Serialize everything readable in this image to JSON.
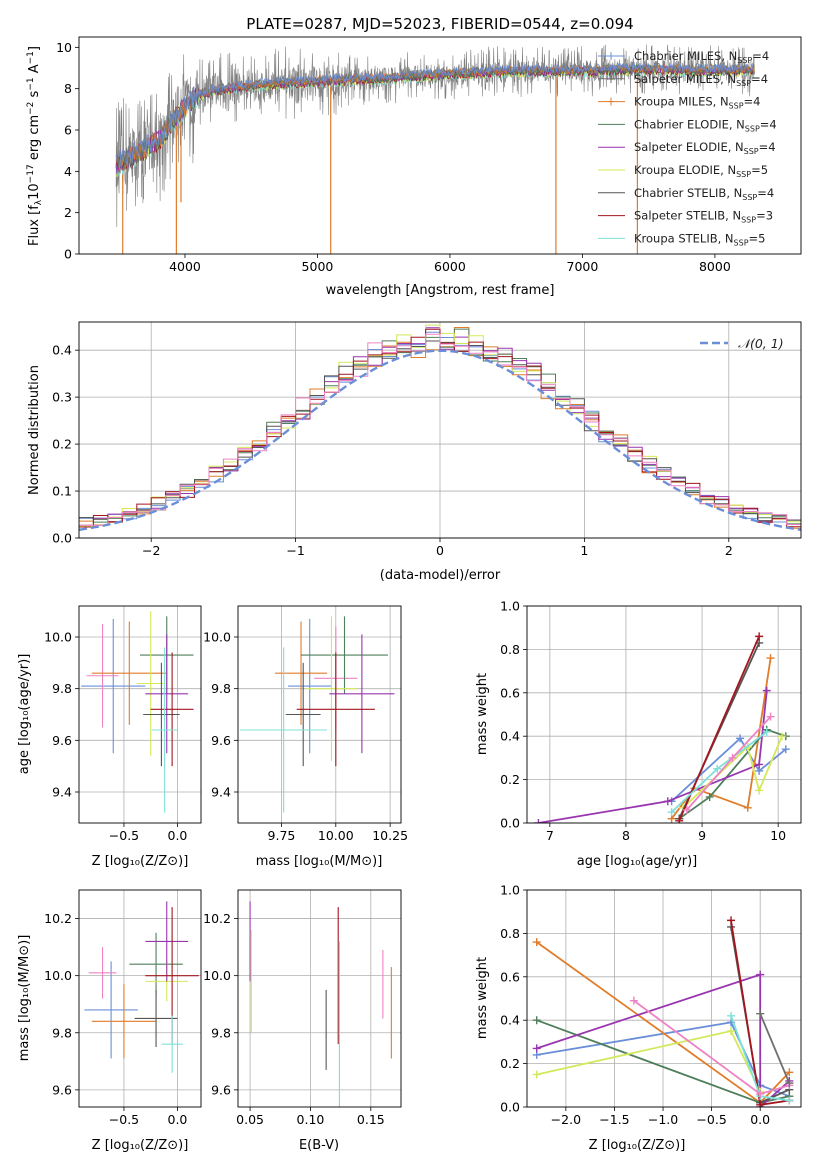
{
  "colors": {
    "chabrier_miles": "#6a8fd8",
    "salpeter_miles": "#6f6f6f",
    "kroupa_miles": "#e07c2a",
    "chabrier_elodie": "#4f7f5a",
    "salpeter_elodie": "#9a35b0",
    "kroupa_elodie": "#d4e85a",
    "chabrier_stelib": "#555555",
    "salpeter_stelib": "#a3161e",
    "kroupa_stelib": "#7fe0d8",
    "extra_pink": "#ee82c3",
    "data_gray": "#808080",
    "grid": "#b0b0b0"
  },
  "chart_data": [
    {
      "id": "spectrum",
      "type": "line",
      "title": "PLATE=0287, MJD=52023, FIBERID=0544, z=0.094",
      "xlabel": "wavelength [Angstrom, rest frame]",
      "ylabel_parts": [
        "Flux [f",
        "λ",
        "10",
        "−17",
        " erg cm",
        "−2",
        " s",
        "−1",
        " A",
        "−1",
        "]"
      ],
      "xlim": [
        3200,
        8650
      ],
      "ylim": [
        0,
        10.5
      ],
      "xticks": [
        4000,
        5000,
        6000,
        7000,
        8000
      ],
      "yticks": [
        0,
        2,
        4,
        6,
        8,
        10
      ],
      "grid": false,
      "legend_position": "right",
      "legend": [
        {
          "label": "Chabrier MILES, N",
          "sub": "SSP",
          "val": "=4",
          "color_key": "chabrier_miles"
        },
        {
          "label": "Salpeter MILES, N",
          "sub": "SSP",
          "val": "=4",
          "color_key": "salpeter_miles"
        },
        {
          "label": "Kroupa MILES, N",
          "sub": "SSP",
          "val": "=4",
          "color_key": "kroupa_miles"
        },
        {
          "label": "Chabrier ELODIE, N",
          "sub": "SSP",
          "val": "=4",
          "color_key": "chabrier_elodie"
        },
        {
          "label": "Salpeter ELODIE, N",
          "sub": "SSP",
          "val": "=4",
          "color_key": "salpeter_elodie"
        },
        {
          "label": "Kroupa ELODIE, N",
          "sub": "SSP",
          "val": "=5",
          "color_key": "kroupa_elodie"
        },
        {
          "label": "Chabrier STELIB, N",
          "sub": "SSP",
          "val": "=4",
          "color_key": "chabrier_stelib"
        },
        {
          "label": "Salpeter STELIB, N",
          "sub": "SSP",
          "val": "=3",
          "color_key": "salpeter_stelib"
        },
        {
          "label": "Kroupa STELIB, N",
          "sub": "SSP",
          "val": "=5",
          "color_key": "kroupa_stelib"
        }
      ],
      "continuum": {
        "x": [
          3480,
          3600,
          3800,
          3950,
          4100,
          4300,
          4600,
          5000,
          5500,
          6000,
          6500,
          7000,
          7500,
          8000,
          8300
        ],
        "y": [
          4.3,
          4.7,
          5.5,
          6.8,
          7.7,
          8.0,
          8.2,
          8.35,
          8.5,
          8.7,
          8.85,
          8.85,
          8.95,
          8.85,
          8.9
        ]
      },
      "dips": [
        {
          "x": 3530,
          "y": 0.0
        },
        {
          "x": 3935,
          "y": 0.0
        },
        {
          "x": 3970,
          "y": 2.5
        },
        {
          "x": 5100,
          "y": 0.0
        },
        {
          "x": 6800,
          "y": 0.0
        },
        {
          "x": 7415,
          "y": 0.0
        }
      ]
    },
    {
      "id": "residuals",
      "type": "line",
      "xlabel": "(data-model)/error",
      "ylabel": "Normed distribution",
      "xlim": [
        -2.5,
        2.5
      ],
      "ylim": [
        0,
        0.46
      ],
      "xticks": [
        -2,
        -1,
        0,
        1,
        2
      ],
      "xtick_labels": [
        "−2",
        "−1",
        "0",
        "1",
        "2"
      ],
      "yticks": [
        0.0,
        0.1,
        0.2,
        0.3,
        0.4
      ],
      "ytick_labels": [
        "0.0",
        "0.1",
        "0.2",
        "0.3",
        "0.4"
      ],
      "grid": true,
      "legend": [
        {
          "label": "𝒩(0, 1)",
          "color_key": "chabrier_miles",
          "style": "dashed"
        }
      ],
      "legend_position": "top-right",
      "bin_width": 0.1,
      "gaussian": {
        "mu": 0,
        "sigma": 1
      }
    },
    {
      "id": "age_vs_Z",
      "type": "scatter",
      "xlabel": "Z [log₁₀(Z/Z⊙)]",
      "ylabel": "age  [log₁₀(age/yr)]",
      "xlim": [
        -0.92,
        0.22
      ],
      "ylim": [
        9.28,
        10.12
      ],
      "xticks": [
        -0.5,
        0.0
      ],
      "xtick_labels": [
        "−0.5",
        "0.0"
      ],
      "yticks": [
        9.4,
        9.6,
        9.8,
        10.0
      ],
      "ytick_labels": [
        "9.4",
        "9.6",
        "9.8",
        "10.0"
      ],
      "grid": true,
      "points": [
        {
          "x": -0.6,
          "xerr": 0.3,
          "y": 9.81,
          "yerr": 0.26,
          "color_key": "chabrier_miles"
        },
        {
          "x": -0.7,
          "xerr": 0.15,
          "y": 9.85,
          "yerr": 0.2,
          "color_key": "extra_pink"
        },
        {
          "x": -0.45,
          "xerr": 0.35,
          "y": 9.86,
          "yerr": 0.2,
          "color_key": "kroupa_miles"
        },
        {
          "x": -0.1,
          "xerr": 0.25,
          "y": 9.93,
          "yerr": 0.15,
          "color_key": "chabrier_elodie"
        },
        {
          "x": -0.25,
          "xerr": 0.13,
          "y": 9.82,
          "yerr": 0.28,
          "color_key": "kroupa_elodie"
        },
        {
          "x": -0.1,
          "xerr": 0.2,
          "y": 9.78,
          "yerr": 0.23,
          "color_key": "salpeter_elodie"
        },
        {
          "x": -0.15,
          "xerr": 0.17,
          "y": 9.7,
          "yerr": 0.2,
          "color_key": "chabrier_stelib"
        },
        {
          "x": -0.05,
          "xerr": 0.2,
          "y": 9.72,
          "yerr": 0.22,
          "color_key": "salpeter_stelib"
        },
        {
          "x": -0.12,
          "xerr": 0.12,
          "y": 9.64,
          "yerr": 0.32,
          "color_key": "kroupa_stelib"
        }
      ]
    },
    {
      "id": "age_vs_mass",
      "type": "scatter",
      "xlabel": "mass [log₁₀(M/M⊙)]",
      "xlim": [
        9.55,
        10.3
      ],
      "ylim": [
        9.28,
        10.12
      ],
      "xticks": [
        9.75,
        10.0,
        10.25
      ],
      "xtick_labels": [
        "9.75",
        "10.00",
        "10.25"
      ],
      "yticks": [
        9.4,
        9.6,
        9.8,
        10.0
      ],
      "ytick_labels": [
        "9.4",
        "9.6",
        "9.8",
        "10.0"
      ],
      "grid": true,
      "points": [
        {
          "x": 9.88,
          "xerr": 0.1,
          "y": 9.81,
          "yerr": 0.26,
          "color_key": "chabrier_miles"
        },
        {
          "x": 10.0,
          "xerr": 0.1,
          "y": 9.84,
          "yerr": 0.2,
          "color_key": "extra_pink"
        },
        {
          "x": 9.84,
          "xerr": 0.12,
          "y": 9.86,
          "yerr": 0.2,
          "color_key": "kroupa_miles"
        },
        {
          "x": 10.04,
          "xerr": 0.2,
          "y": 9.93,
          "yerr": 0.15,
          "color_key": "chabrier_elodie"
        },
        {
          "x": 9.98,
          "xerr": 0.12,
          "y": 9.8,
          "yerr": 0.28,
          "color_key": "kroupa_elodie"
        },
        {
          "x": 10.12,
          "xerr": 0.15,
          "y": 9.78,
          "yerr": 0.23,
          "color_key": "salpeter_elodie"
        },
        {
          "x": 9.85,
          "xerr": 0.08,
          "y": 9.7,
          "yerr": 0.2,
          "color_key": "chabrier_stelib"
        },
        {
          "x": 10.0,
          "xerr": 0.18,
          "y": 9.72,
          "yerr": 0.22,
          "color_key": "salpeter_stelib"
        },
        {
          "x": 9.76,
          "xerr": 0.2,
          "y": 9.64,
          "yerr": 0.32,
          "color_key": "kroupa_stelib"
        }
      ]
    },
    {
      "id": "massweight_vs_age",
      "type": "line",
      "xlabel": "age  [log₁₀(age/yr)]",
      "ylabel": "mass weight",
      "xlim": [
        6.7,
        10.3
      ],
      "ylim": [
        0,
        1.0
      ],
      "xticks": [
        7,
        8,
        9,
        10
      ],
      "yticks": [
        0.0,
        0.2,
        0.4,
        0.6,
        0.8,
        1.0
      ],
      "ytick_labels": [
        "0.0",
        "0.2",
        "0.4",
        "0.6",
        "0.8",
        "1.0"
      ],
      "grid": true,
      "series": [
        {
          "color_key": "chabrier_miles",
          "x": [
            8.6,
            9.5,
            9.75,
            10.1
          ],
          "y": [
            0.1,
            0.39,
            0.24,
            0.34
          ]
        },
        {
          "color_key": "kroupa_miles",
          "x": [
            8.6,
            8.9,
            9.6,
            9.9
          ],
          "y": [
            0.02,
            0.16,
            0.07,
            0.76
          ]
        },
        {
          "color_key": "chabrier_elodie",
          "x": [
            8.7,
            9.1,
            9.85,
            10.1
          ],
          "y": [
            0.02,
            0.12,
            0.43,
            0.4
          ]
        },
        {
          "color_key": "salpeter_elodie",
          "x": [
            6.85,
            8.55,
            9.75,
            9.85
          ],
          "y": [
            0.0,
            0.1,
            0.27,
            0.61
          ]
        },
        {
          "color_key": "kroupa_elodie",
          "x": [
            8.75,
            9.6,
            9.75,
            10.05
          ],
          "y": [
            0.07,
            0.35,
            0.15,
            0.4
          ]
        },
        {
          "color_key": "chabrier_stelib",
          "x": [
            8.7,
            9.75
          ],
          "y": [
            0.02,
            0.83
          ]
        },
        {
          "color_key": "salpeter_stelib",
          "x": [
            8.7,
            9.75
          ],
          "y": [
            0.01,
            0.86
          ]
        },
        {
          "color_key": "kroupa_stelib",
          "x": [
            8.6,
            9.2,
            9.85
          ],
          "y": [
            0.05,
            0.25,
            0.42
          ]
        },
        {
          "color_key": "extra_pink",
          "x": [
            8.8,
            9.4,
            9.9
          ],
          "y": [
            0.06,
            0.3,
            0.49
          ]
        }
      ]
    },
    {
      "id": "mass_vs_Z",
      "type": "scatter",
      "xlabel": "Z [log₁₀(Z/Z⊙)]",
      "ylabel": "mass [log₁₀(M/M⊙)]",
      "xlim": [
        -0.92,
        0.22
      ],
      "ylim": [
        9.54,
        10.3
      ],
      "xticks": [
        -0.5,
        0.0
      ],
      "xtick_labels": [
        "−0.5",
        "0.0"
      ],
      "yticks": [
        9.6,
        9.8,
        10.0,
        10.2
      ],
      "ytick_labels": [
        "9.6",
        "9.8",
        "10.0",
        "10.2"
      ],
      "grid": true,
      "points": [
        {
          "x": -0.62,
          "xerr": 0.25,
          "y": 9.88,
          "yerr": 0.17,
          "color_key": "chabrier_miles"
        },
        {
          "x": -0.7,
          "xerr": 0.13,
          "y": 10.01,
          "yerr": 0.09,
          "color_key": "extra_pink"
        },
        {
          "x": -0.5,
          "xerr": 0.3,
          "y": 9.84,
          "yerr": 0.13,
          "color_key": "kroupa_miles"
        },
        {
          "x": -0.2,
          "xerr": 0.25,
          "y": 10.04,
          "yerr": 0.11,
          "color_key": "chabrier_elodie"
        },
        {
          "x": -0.1,
          "xerr": 0.2,
          "y": 9.98,
          "yerr": 0.07,
          "color_key": "kroupa_elodie"
        },
        {
          "x": -0.1,
          "xerr": 0.2,
          "y": 10.12,
          "yerr": 0.14,
          "color_key": "salpeter_elodie"
        },
        {
          "x": -0.2,
          "xerr": 0.2,
          "y": 9.85,
          "yerr": 0.1,
          "color_key": "chabrier_stelib"
        },
        {
          "x": -0.05,
          "xerr": 0.25,
          "y": 10.0,
          "yerr": 0.24,
          "color_key": "salpeter_stelib"
        },
        {
          "x": -0.05,
          "xerr": 0.1,
          "y": 9.76,
          "yerr": 0.1,
          "color_key": "kroupa_stelib"
        }
      ]
    },
    {
      "id": "mass_vs_ebv",
      "type": "scatter",
      "xlabel": "E(B-V)",
      "xlim": [
        0.04,
        0.175
      ],
      "ylim": [
        9.54,
        10.3
      ],
      "xticks": [
        0.05,
        0.1,
        0.15
      ],
      "xtick_labels": [
        "0.05",
        "0.10",
        "0.15"
      ],
      "yticks": [
        9.6,
        9.8,
        10.0,
        10.2
      ],
      "ytick_labels": [
        "9.6",
        "9.8",
        "10.0",
        "10.2"
      ],
      "grid": true,
      "points": [
        {
          "x": 0.05,
          "y": 10.12,
          "yerr": 0.14,
          "color_key": "salpeter_elodie"
        },
        {
          "x": 0.051,
          "y": 9.98,
          "yerr": 0.18,
          "color_key": "kroupa_elodie"
        },
        {
          "x": 0.113,
          "y": 9.81,
          "yerr": 0.14,
          "color_key": "chabrier_stelib"
        },
        {
          "x": 0.123,
          "y": 10.0,
          "yerr": 0.24,
          "color_key": "salpeter_stelib"
        },
        {
          "x": 0.124,
          "y": 9.8,
          "yerr": 0.32,
          "color_key": "kroupa_stelib"
        },
        {
          "x": 0.16,
          "y": 9.97,
          "yerr": 0.12,
          "color_key": "extra_pink"
        },
        {
          "x": 0.167,
          "y": 9.87,
          "yerr": 0.16,
          "color_key": "kroupa_miles"
        }
      ]
    },
    {
      "id": "massweight_vs_Z",
      "type": "line",
      "xlabel": "Z [log₁₀(Z/Z⊙)]",
      "ylabel": "mass weight",
      "xlim": [
        -2.4,
        0.42
      ],
      "ylim": [
        0,
        1.0
      ],
      "xticks": [
        -2.0,
        -1.5,
        -1.0,
        -0.5,
        0.0
      ],
      "xtick_labels": [
        "−2.0",
        "−1.5",
        "−1.0",
        "−0.5",
        "0.0"
      ],
      "yticks": [
        0.0,
        0.2,
        0.4,
        0.6,
        0.8,
        1.0
      ],
      "ytick_labels": [
        "0.0",
        "0.2",
        "0.4",
        "0.6",
        "0.8",
        "1.0"
      ],
      "grid": true,
      "series": [
        {
          "color_key": "chabrier_miles",
          "x": [
            -2.3,
            -0.3,
            0.0,
            0.3
          ],
          "y": [
            0.24,
            0.39,
            0.1,
            0.05
          ]
        },
        {
          "color_key": "kroupa_miles",
          "x": [
            -2.3,
            0.0,
            0.3
          ],
          "y": [
            0.76,
            0.02,
            0.16
          ]
        },
        {
          "color_key": "chabrier_elodie",
          "x": [
            -2.3,
            0.0,
            0.3
          ],
          "y": [
            0.4,
            0.02,
            0.05
          ]
        },
        {
          "color_key": "salpeter_elodie",
          "x": [
            -2.3,
            0.0,
            0.0,
            0.3
          ],
          "y": [
            0.27,
            0.61,
            0.0,
            0.12
          ]
        },
        {
          "color_key": "kroupa_elodie",
          "x": [
            -2.3,
            -0.3,
            0.0
          ],
          "y": [
            0.15,
            0.35,
            0.07
          ]
        },
        {
          "color_key": "chabrier_stelib",
          "x": [
            -0.3,
            0.0,
            0.3
          ],
          "y": [
            0.83,
            0.02,
            0.08
          ]
        },
        {
          "color_key": "salpeter_stelib",
          "x": [
            -0.3,
            0.0,
            0.3
          ],
          "y": [
            0.86,
            0.01,
            0.03
          ]
        },
        {
          "color_key": "kroupa_stelib",
          "x": [
            -0.3,
            0.0,
            0.3
          ],
          "y": [
            0.42,
            0.05,
            0.03
          ]
        },
        {
          "color_key": "extra_pink",
          "x": [
            -1.3,
            0.0,
            0.3
          ],
          "y": [
            0.49,
            0.06,
            0.1
          ]
        },
        {
          "color_key": "salpeter_miles",
          "x": [
            0.0,
            0.3
          ],
          "y": [
            0.43,
            0.11
          ]
        }
      ]
    }
  ]
}
